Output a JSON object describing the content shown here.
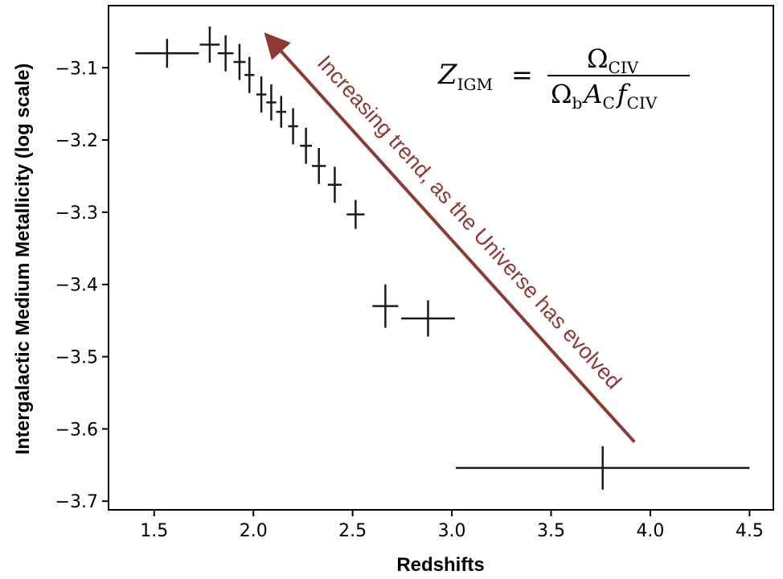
{
  "chart_data": {
    "type": "scatter",
    "title": "",
    "xlabel": "Redshifts",
    "ylabel": "Intergalactic Medium Metallicity (log scale)",
    "xlim": [
      1.27,
      4.62
    ],
    "ylim": [
      -3.712,
      -3.014
    ],
    "x_ticks": [
      1.5,
      2.0,
      2.5,
      3.0,
      3.5,
      4.0,
      4.5
    ],
    "x_tick_labels": [
      "1.5",
      "2.0",
      "2.5",
      "3.0",
      "3.5",
      "4.0",
      "4.5"
    ],
    "y_ticks": [
      -3.1,
      -3.2,
      -3.3,
      -3.4,
      -3.5,
      -3.6,
      -3.7
    ],
    "y_tick_labels": [
      "−3.1",
      "−3.2",
      "−3.3",
      "−3.4",
      "−3.5",
      "−3.6",
      "−3.7"
    ],
    "grid": false,
    "marker_color": "#1a1a1a",
    "points": [
      {
        "x": 1.565,
        "y": -3.08,
        "xerr": 0.16,
        "yerr": 0.02
      },
      {
        "x": 1.78,
        "y": -3.068,
        "xerr": 0.05,
        "yerr": 0.025
      },
      {
        "x": 1.86,
        "y": -3.08,
        "xerr": 0.04,
        "yerr": 0.025
      },
      {
        "x": 1.93,
        "y": -3.092,
        "xerr": 0.03,
        "yerr": 0.025
      },
      {
        "x": 1.98,
        "y": -3.11,
        "xerr": 0.025,
        "yerr": 0.025
      },
      {
        "x": 2.04,
        "y": -3.137,
        "xerr": 0.025,
        "yerr": 0.025
      },
      {
        "x": 2.09,
        "y": -3.148,
        "xerr": 0.025,
        "yerr": 0.025
      },
      {
        "x": 2.14,
        "y": -3.161,
        "xerr": 0.025,
        "yerr": 0.022
      },
      {
        "x": 2.2,
        "y": -3.181,
        "xerr": 0.025,
        "yerr": 0.025
      },
      {
        "x": 2.265,
        "y": -3.208,
        "xerr": 0.03,
        "yerr": 0.025
      },
      {
        "x": 2.33,
        "y": -3.236,
        "xerr": 0.035,
        "yerr": 0.025
      },
      {
        "x": 2.41,
        "y": -3.262,
        "xerr": 0.035,
        "yerr": 0.025
      },
      {
        "x": 2.515,
        "y": -3.303,
        "xerr": 0.045,
        "yerr": 0.02
      },
      {
        "x": 2.665,
        "y": -3.43,
        "xerr": 0.065,
        "yerr": 0.03
      },
      {
        "x": 2.88,
        "y": -3.447,
        "xerr": 0.135,
        "yerr": 0.025
      },
      {
        "x": 3.76,
        "y": -3.654,
        "xerr": 0.74,
        "yerr": 0.03
      }
    ],
    "annotation": {
      "text": "Increasing  trend, as the Universe has evolved",
      "color": "#8e3a34",
      "arrow_from": {
        "x": 3.92,
        "y": -3.618
      },
      "arrow_to": {
        "x": 2.07,
        "y": -3.056
      }
    },
    "equation": {
      "lhs_symbol": "Z",
      "lhs_subscript": "IGM",
      "equals": "=",
      "numerator_symbol": "Ω",
      "numerator_subscript": "CIV",
      "denominator_symbol_1": "Ω",
      "denominator_subscript_1": "b",
      "denominator_symbol_2": "A",
      "denominator_subscript_2": "C",
      "denominator_symbol_3": "f",
      "denominator_subscript_3": "CIV"
    }
  }
}
